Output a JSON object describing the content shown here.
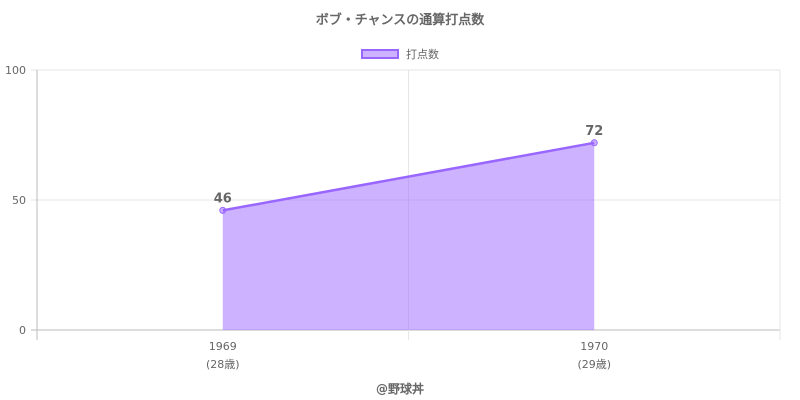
{
  "chart_data": {
    "type": "area",
    "title": "ボブ・チャンスの通算打点数",
    "categories": [
      "1969",
      "1970"
    ],
    "category_sublabels": [
      "(28歳)",
      "(29歳)"
    ],
    "series": [
      {
        "name": "打点数",
        "values": [
          46,
          72
        ]
      }
    ],
    "ylim": [
      0,
      100
    ],
    "yticks": [
      0,
      50,
      100
    ],
    "grid": true,
    "legend": "top-center",
    "colors": {
      "line": "#9966ff",
      "fill": "rgba(153,102,255,0.5)"
    }
  },
  "credit": "@野球丼"
}
